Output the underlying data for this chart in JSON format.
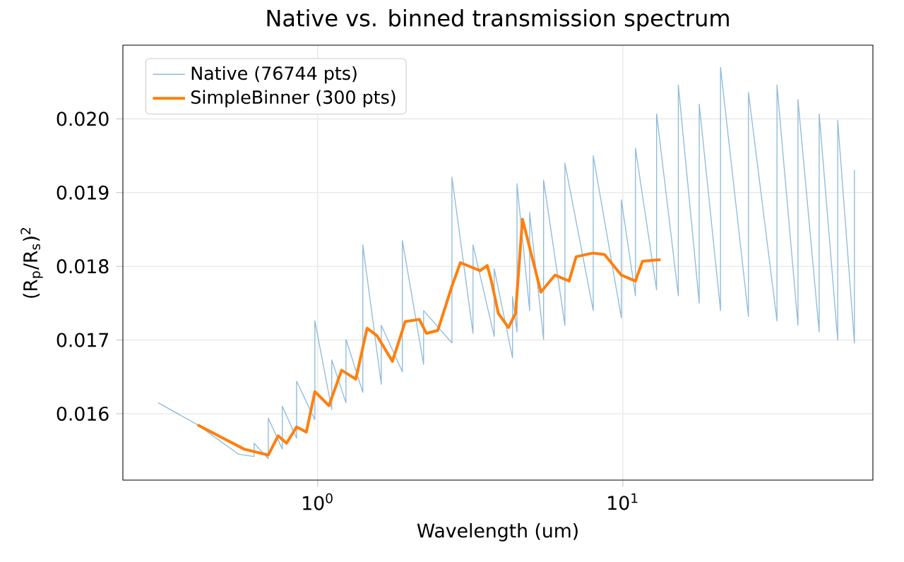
{
  "chart_data": {
    "type": "line",
    "title": "Native vs. binned transmission spectrum",
    "xlabel": "Wavelength (um)",
    "ylabel": "(R$_{p}$/R$_{s}$)$^{2}$",
    "log": "x",
    "xlim": [
      0.23,
      66
    ],
    "xticks": [
      {
        "value": 1,
        "label": "10$^{0}$"
      },
      {
        "value": 10,
        "label": "10$^{1}$"
      }
    ],
    "ylim": [
      0.0151,
      0.021
    ],
    "yticks": [
      0.016,
      0.017,
      0.018,
      0.019,
      {
        "value": 0.02,
        "label": "0.020"
      }
    ],
    "grid": true,
    "legend": "top left",
    "marker": "none",
    "line_style": "solid",
    "series": [
      {
        "name": "Native (76744 pts)",
        "color": "#8fbbd9",
        "x": [
          0.3,
          0.404,
          0.551,
          0.619,
          0.619,
          0.689,
          0.689,
          0.766,
          0.766,
          0.853,
          0.853,
          0.979,
          0.979,
          1.112,
          1.112,
          1.238,
          1.238,
          1.406,
          1.406,
          1.616,
          1.616,
          1.895,
          1.895,
          2.224,
          2.224,
          2.754,
          2.754,
          3.229,
          3.229,
          3.79,
          3.79,
          4.35,
          4.35,
          4.5,
          4.5,
          4.95,
          4.95,
          5.5,
          5.5,
          6.46,
          6.46,
          8.0,
          8.0,
          9.89,
          9.89,
          11.0,
          11.0,
          12.9,
          12.9,
          15.2,
          15.2,
          17.8,
          17.8,
          20.9,
          20.9,
          25.8,
          25.8,
          32.0,
          32.0,
          37.5,
          37.5,
          44.0,
          44.0,
          50.6,
          50.6,
          57.4,
          57.4
        ],
        "values": [
          0.01615,
          0.01585,
          0.01545,
          0.01542,
          0.0156,
          0.01539,
          0.01594,
          0.01552,
          0.0161,
          0.01567,
          0.01644,
          0.01592,
          0.01726,
          0.01606,
          0.01673,
          0.01615,
          0.01701,
          0.01629,
          0.01829,
          0.0164,
          0.0172,
          0.01657,
          0.01835,
          0.01667,
          0.0174,
          0.01696,
          0.01921,
          0.01709,
          0.01829,
          0.01705,
          0.01797,
          0.01676,
          0.01759,
          0.01711,
          0.01912,
          0.0174,
          0.01873,
          0.01701,
          0.01917,
          0.0172,
          0.0194,
          0.0174,
          0.0195,
          0.0173,
          0.0189,
          0.0176,
          0.0196,
          0.01768,
          0.02007,
          0.0176,
          0.02046,
          0.0175,
          0.0202,
          0.0174,
          0.0207,
          0.01732,
          0.02036,
          0.01726,
          0.02046,
          0.0172,
          0.02026,
          0.01711,
          0.02007,
          0.017,
          0.01998,
          0.01696,
          0.01931
        ]
      },
      {
        "name": "SimpleBinner (300 pts)",
        "color": "#ff7f0e",
        "x": [
          0.404,
          0.574,
          0.689,
          0.742,
          0.791,
          0.853,
          0.918,
          0.979,
          1.089,
          1.198,
          1.334,
          1.452,
          1.564,
          1.758,
          1.936,
          2.154,
          2.271,
          2.475,
          2.754,
          2.936,
          3.406,
          3.594,
          3.71,
          3.91,
          4.22,
          4.45,
          4.69,
          5.39,
          5.99,
          6.67,
          7.03,
          8.0,
          8.71,
          9.89,
          11.0,
          11.6,
          13.3
        ],
        "values": [
          0.01585,
          0.01552,
          0.01544,
          0.0157,
          0.0156,
          0.01582,
          0.01575,
          0.0163,
          0.01611,
          0.01659,
          0.01647,
          0.01716,
          0.01706,
          0.01671,
          0.01725,
          0.01728,
          0.01709,
          0.01713,
          0.01773,
          0.01805,
          0.01794,
          0.01801,
          0.0178,
          0.01736,
          0.01717,
          0.01736,
          0.01864,
          0.01765,
          0.01788,
          0.0178,
          0.01813,
          0.01818,
          0.01816,
          0.01788,
          0.0178,
          0.01807,
          0.01809
        ]
      }
    ]
  }
}
